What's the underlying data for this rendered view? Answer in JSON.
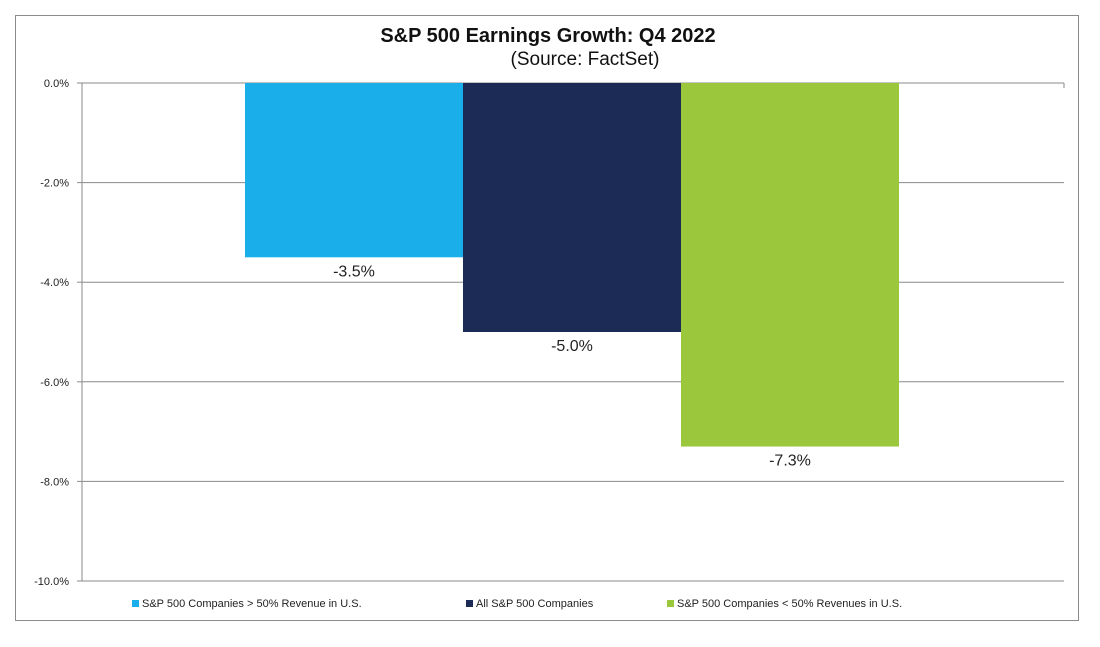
{
  "chart_data": {
    "type": "bar",
    "title": "S&P 500 Earnings Growth: Q4 2022",
    "subtitle": "(Source: FactSet)",
    "categories": [
      "S&P 500 Companies > 50% Revenue in U.S.",
      "All S&P 500 Companies",
      "S&P 500 Companies < 50% Revenues in U.S."
    ],
    "values": [
      -3.5,
      -5.0,
      -7.3
    ],
    "data_labels": [
      "-3.5%",
      "-5.0%",
      "-7.3%"
    ],
    "colors": [
      "#1aaeea",
      "#1c2b55",
      "#9bc73c"
    ],
    "ylim": [
      -10,
      0
    ],
    "yticks": [
      0,
      -2,
      -4,
      -6,
      -8,
      -10
    ],
    "ytick_labels": [
      "0.0%",
      "-2.0%",
      "-4.0%",
      "-6.0%",
      "-8.0%",
      "-10.0%"
    ],
    "grid": true,
    "legend_position": "bottom"
  }
}
